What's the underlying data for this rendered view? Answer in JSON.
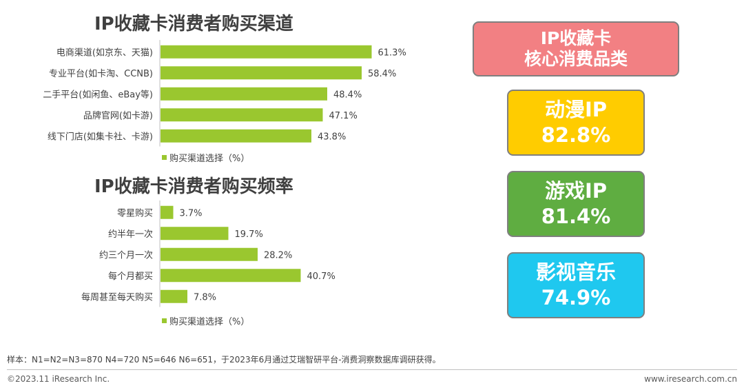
{
  "chart_data": [
    {
      "type": "bar",
      "orientation": "horizontal",
      "title": "IP收藏卡消费者购买渠道",
      "categories": [
        "电商渠道(如京东、天猫)",
        "专业平台(如卡淘、CCNB)",
        "二手平台(如闲鱼、eBay等)",
        "品牌官网(如卡游)",
        "线下门店(如集卡社、卡游)"
      ],
      "series": [
        {
          "name": "购买渠道选择（%）",
          "values": [
            61.3,
            58.4,
            48.4,
            47.1,
            43.8
          ]
        }
      ],
      "value_labels": [
        "61.3%",
        "58.4%",
        "48.4%",
        "47.1%",
        "43.8%"
      ],
      "color": "#9ac72f",
      "legend_position": "bottom",
      "grid": false
    },
    {
      "type": "bar",
      "orientation": "horizontal",
      "title": "IP收藏卡消费者购买频率",
      "categories": [
        "零星购买",
        "约半年一次",
        "约三个月一次",
        "每个月都买",
        "每周甚至每天购买"
      ],
      "series": [
        {
          "name": "购买渠道选择（%）",
          "values": [
            3.7,
            19.7,
            28.2,
            40.7,
            7.8
          ]
        }
      ],
      "value_labels": [
        "3.7%",
        "19.7%",
        "28.2%",
        "40.7%",
        "7.8%"
      ],
      "color": "#9ac72f",
      "legend_position": "bottom",
      "grid": false
    }
  ],
  "core_categories": {
    "header": {
      "line1": "IP收藏卡",
      "line2": "核心消费品类"
    },
    "cards": [
      {
        "category": "动漫IP",
        "share": "82.8%",
        "color": "#ffcc00"
      },
      {
        "category": "游戏IP",
        "share": "81.4%",
        "color": "#5fad41"
      },
      {
        "category": "影视音乐",
        "share": "74.9%",
        "color": "#1fc8ef"
      }
    ],
    "header_color": "#f28083"
  },
  "footer": {
    "sample_note": "样本：N1=N2=N3=870 N4=720 N5=646 N6=651，于2023年6月通过艾瑞智研平台-消费洞察数据库调研获得。",
    "copyright": "©2023.11 iResearch Inc.",
    "website": "www.iresearch.com.cn"
  }
}
